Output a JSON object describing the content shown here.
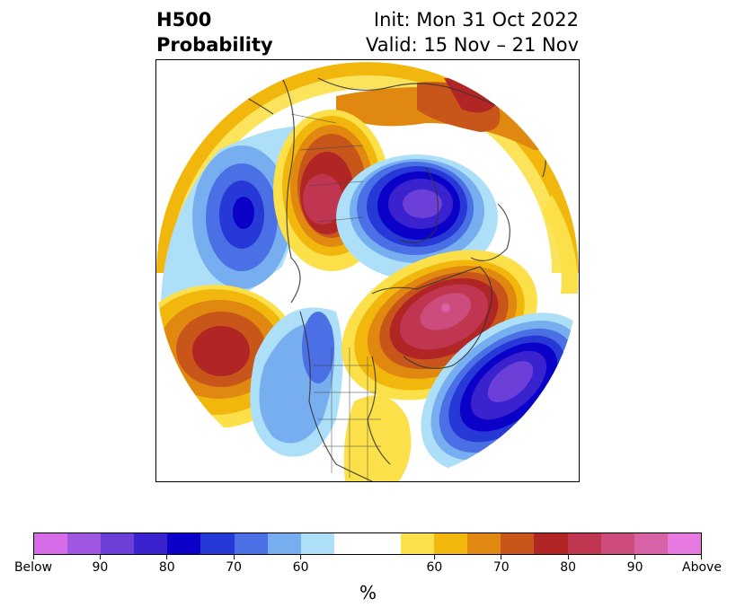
{
  "header": {
    "left_line1": "H500",
    "left_line2": "Probability",
    "right_line1": "Init: Mon 31 Oct 2022",
    "right_line2": "Valid: 15 Nov – 21 Nov"
  },
  "colorbar": {
    "colors": [
      "#d66ce8",
      "#9f57e1",
      "#6b3fd8",
      "#3b22cf",
      "#0a00c8",
      "#2638d6",
      "#4b70e5",
      "#77aef0",
      "#addff9",
      "#ffffff",
      "#ffffff",
      "#fce04a",
      "#f2b70c",
      "#e0880f",
      "#c8561a",
      "#b22525",
      "#c03650",
      "#cc4d7d",
      "#d862a6",
      "#e67ae0"
    ],
    "ticks": [
      "Below",
      "90",
      "80",
      "70",
      "60",
      "60",
      "70",
      "80",
      "90",
      "Above"
    ],
    "units": "%"
  },
  "map": {
    "projection": "north-polar-stereographic",
    "anomalies": [
      {
        "sign": "below",
        "max_level": 90,
        "location": "Arctic / north of Scandinavia"
      },
      {
        "sign": "below",
        "max_level": 80,
        "location": "North Atlantic"
      },
      {
        "sign": "below",
        "max_level": 80,
        "location": "Central Asia"
      },
      {
        "sign": "below",
        "max_level": 70,
        "location": "Western North America"
      },
      {
        "sign": "above",
        "max_level": 90,
        "location": "Greenland / Eastern Canada"
      },
      {
        "sign": "above",
        "max_level": 90,
        "location": "Western Russia / Ural region"
      },
      {
        "sign": "above",
        "max_level": 80,
        "location": "North Pacific"
      },
      {
        "sign": "above",
        "max_level": 80,
        "location": "Siberia / Kara Sea"
      }
    ]
  }
}
